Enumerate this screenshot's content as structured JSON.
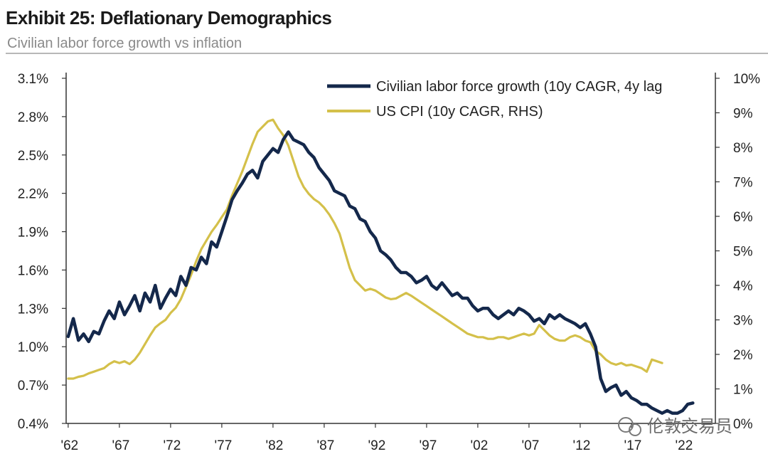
{
  "header": {
    "title": "Exhibit 25: Deflationary Demographics",
    "subtitle": "Civilian labor force growth vs inflation"
  },
  "watermark": {
    "text": "伦敦交易员"
  },
  "chart_data": {
    "type": "line",
    "title": "Exhibit 25: Deflationary Demographics",
    "subtitle": "Civilian labor force growth vs inflation",
    "legend_position": "top-right",
    "x_ticks": [
      "'62",
      "'67",
      "'72",
      "'77",
      "'82",
      "'87",
      "'92",
      "'97",
      "'02",
      "'07",
      "'12",
      "'17",
      "'22"
    ],
    "xlim": [
      1961.8,
      2025.2
    ],
    "left_axis": {
      "ticks": [
        "0.4%",
        "0.7%",
        "1.0%",
        "1.3%",
        "1.6%",
        "1.9%",
        "2.2%",
        "2.5%",
        "2.8%",
        "3.1%"
      ],
      "ylim": [
        0.4,
        3.1
      ]
    },
    "right_axis": {
      "ticks": [
        "0%",
        "1%",
        "2%",
        "3%",
        "4%",
        "5%",
        "6%",
        "7%",
        "8%",
        "9%",
        "10%"
      ],
      "ylim": [
        0,
        10
      ]
    },
    "series": [
      {
        "name": "Civilian labor force growth (10y CAGR, 4y lag",
        "axis": "left",
        "color": "#14284b",
        "x": [
          1962.0,
          1962.5,
          1963.0,
          1963.5,
          1964.0,
          1964.5,
          1965.0,
          1965.5,
          1966.0,
          1966.5,
          1967.0,
          1967.5,
          1968.0,
          1968.5,
          1969.0,
          1969.5,
          1970.0,
          1970.5,
          1971.0,
          1971.5,
          1972.0,
          1972.5,
          1973.0,
          1973.5,
          1974.0,
          1974.5,
          1975.0,
          1975.5,
          1976.0,
          1976.5,
          1977.0,
          1977.5,
          1978.0,
          1978.5,
          1979.0,
          1979.5,
          1980.0,
          1980.5,
          1981.0,
          1981.5,
          1982.0,
          1982.5,
          1983.0,
          1983.5,
          1984.0,
          1984.5,
          1985.0,
          1985.5,
          1986.0,
          1986.5,
          1987.0,
          1987.5,
          1988.0,
          1988.5,
          1989.0,
          1989.5,
          1990.0,
          1990.5,
          1991.0,
          1991.5,
          1992.0,
          1992.5,
          1993.0,
          1993.5,
          1994.0,
          1994.5,
          1995.0,
          1995.5,
          1996.0,
          1996.5,
          1997.0,
          1997.5,
          1998.0,
          1998.5,
          1999.0,
          1999.5,
          2000.0,
          2000.5,
          2001.0,
          2001.5,
          2002.0,
          2002.5,
          2003.0,
          2003.5,
          2004.0,
          2004.5,
          2005.0,
          2005.5,
          2006.0,
          2006.5,
          2007.0,
          2007.5,
          2008.0,
          2008.5,
          2009.0,
          2009.5,
          2010.0,
          2010.5,
          2011.0,
          2011.5,
          2012.0,
          2012.5,
          2013.0,
          2013.5,
          2014.0,
          2014.5,
          2015.0,
          2015.5,
          2016.0,
          2016.5,
          2017.0,
          2017.5,
          2018.0,
          2018.5,
          2019.0,
          2019.5,
          2020.0,
          2020.5,
          2021.0,
          2021.5,
          2022.0,
          2022.5,
          2023.0
        ],
        "values": [
          1.08,
          1.22,
          1.05,
          1.1,
          1.04,
          1.12,
          1.1,
          1.2,
          1.28,
          1.22,
          1.35,
          1.25,
          1.32,
          1.4,
          1.28,
          1.42,
          1.35,
          1.48,
          1.3,
          1.38,
          1.45,
          1.4,
          1.55,
          1.48,
          1.62,
          1.6,
          1.7,
          1.65,
          1.82,
          1.78,
          1.9,
          2.02,
          2.15,
          2.22,
          2.28,
          2.35,
          2.38,
          2.32,
          2.45,
          2.5,
          2.55,
          2.52,
          2.62,
          2.68,
          2.62,
          2.6,
          2.58,
          2.52,
          2.48,
          2.4,
          2.35,
          2.3,
          2.22,
          2.2,
          2.18,
          2.1,
          2.08,
          2.0,
          1.98,
          1.9,
          1.85,
          1.75,
          1.72,
          1.68,
          1.62,
          1.58,
          1.58,
          1.55,
          1.5,
          1.52,
          1.55,
          1.48,
          1.45,
          1.5,
          1.45,
          1.4,
          1.42,
          1.38,
          1.38,
          1.32,
          1.28,
          1.3,
          1.3,
          1.25,
          1.22,
          1.25,
          1.28,
          1.25,
          1.3,
          1.28,
          1.25,
          1.2,
          1.22,
          1.18,
          1.25,
          1.22,
          1.25,
          1.22,
          1.2,
          1.18,
          1.15,
          1.18,
          1.1,
          1.0,
          0.75,
          0.65,
          0.68,
          0.7,
          0.62,
          0.65,
          0.6,
          0.58,
          0.55,
          0.55,
          0.52,
          0.5,
          0.48,
          0.5,
          0.48,
          0.48,
          0.5,
          0.55,
          0.56
        ]
      },
      {
        "name": "US CPI (10y CAGR, RHS)",
        "axis": "right",
        "color": "#d4c04a",
        "x": [
          1962.0,
          1962.5,
          1963.0,
          1963.5,
          1964.0,
          1964.5,
          1965.0,
          1965.5,
          1966.0,
          1966.5,
          1967.0,
          1967.5,
          1968.0,
          1968.5,
          1969.0,
          1969.5,
          1970.0,
          1970.5,
          1971.0,
          1971.5,
          1972.0,
          1972.5,
          1973.0,
          1973.5,
          1974.0,
          1974.5,
          1975.0,
          1975.5,
          1976.0,
          1976.5,
          1977.0,
          1977.5,
          1978.0,
          1978.5,
          1979.0,
          1979.5,
          1980.0,
          1980.5,
          1981.0,
          1981.5,
          1982.0,
          1982.5,
          1983.0,
          1983.5,
          1984.0,
          1984.5,
          1985.0,
          1985.5,
          1986.0,
          1986.5,
          1987.0,
          1987.5,
          1988.0,
          1988.5,
          1989.0,
          1989.5,
          1990.0,
          1990.5,
          1991.0,
          1991.5,
          1992.0,
          1992.5,
          1993.0,
          1993.5,
          1994.0,
          1994.5,
          1995.0,
          1995.5,
          1996.0,
          1996.5,
          1997.0,
          1997.5,
          1998.0,
          1998.5,
          1999.0,
          1999.5,
          2000.0,
          2000.5,
          2001.0,
          2001.5,
          2002.0,
          2002.5,
          2003.0,
          2003.5,
          2004.0,
          2004.5,
          2005.0,
          2005.5,
          2006.0,
          2006.5,
          2007.0,
          2007.5,
          2008.0,
          2008.5,
          2009.0,
          2009.5,
          2010.0,
          2010.5,
          2011.0,
          2011.5,
          2012.0,
          2012.5,
          2013.0,
          2013.5,
          2014.0,
          2014.5,
          2015.0,
          2015.5,
          2016.0,
          2016.5,
          2017.0,
          2017.5,
          2018.0,
          2018.5,
          2019.0,
          2019.5,
          2020.0
        ],
        "values": [
          1.3,
          1.3,
          1.35,
          1.38,
          1.45,
          1.5,
          1.55,
          1.6,
          1.72,
          1.8,
          1.75,
          1.8,
          1.72,
          1.85,
          2.05,
          2.3,
          2.55,
          2.78,
          2.9,
          3.0,
          3.2,
          3.35,
          3.6,
          3.95,
          4.3,
          4.7,
          5.05,
          5.3,
          5.55,
          5.75,
          5.98,
          6.2,
          6.6,
          6.95,
          7.3,
          7.7,
          8.1,
          8.45,
          8.6,
          8.75,
          8.8,
          8.55,
          8.35,
          8.05,
          7.6,
          7.15,
          6.85,
          6.65,
          6.5,
          6.4,
          6.25,
          6.05,
          5.8,
          5.5,
          5.0,
          4.5,
          4.15,
          4.0,
          3.85,
          3.9,
          3.85,
          3.75,
          3.65,
          3.6,
          3.62,
          3.7,
          3.78,
          3.7,
          3.6,
          3.5,
          3.4,
          3.3,
          3.2,
          3.1,
          3.0,
          2.9,
          2.8,
          2.7,
          2.6,
          2.55,
          2.5,
          2.5,
          2.45,
          2.45,
          2.5,
          2.5,
          2.45,
          2.5,
          2.55,
          2.6,
          2.55,
          2.6,
          2.85,
          2.7,
          2.55,
          2.45,
          2.4,
          2.4,
          2.5,
          2.55,
          2.5,
          2.4,
          2.35,
          2.1,
          2.0,
          1.85,
          1.75,
          1.7,
          1.75,
          1.68,
          1.7,
          1.65,
          1.6,
          1.5,
          1.85,
          1.8,
          1.75
        ]
      }
    ]
  }
}
